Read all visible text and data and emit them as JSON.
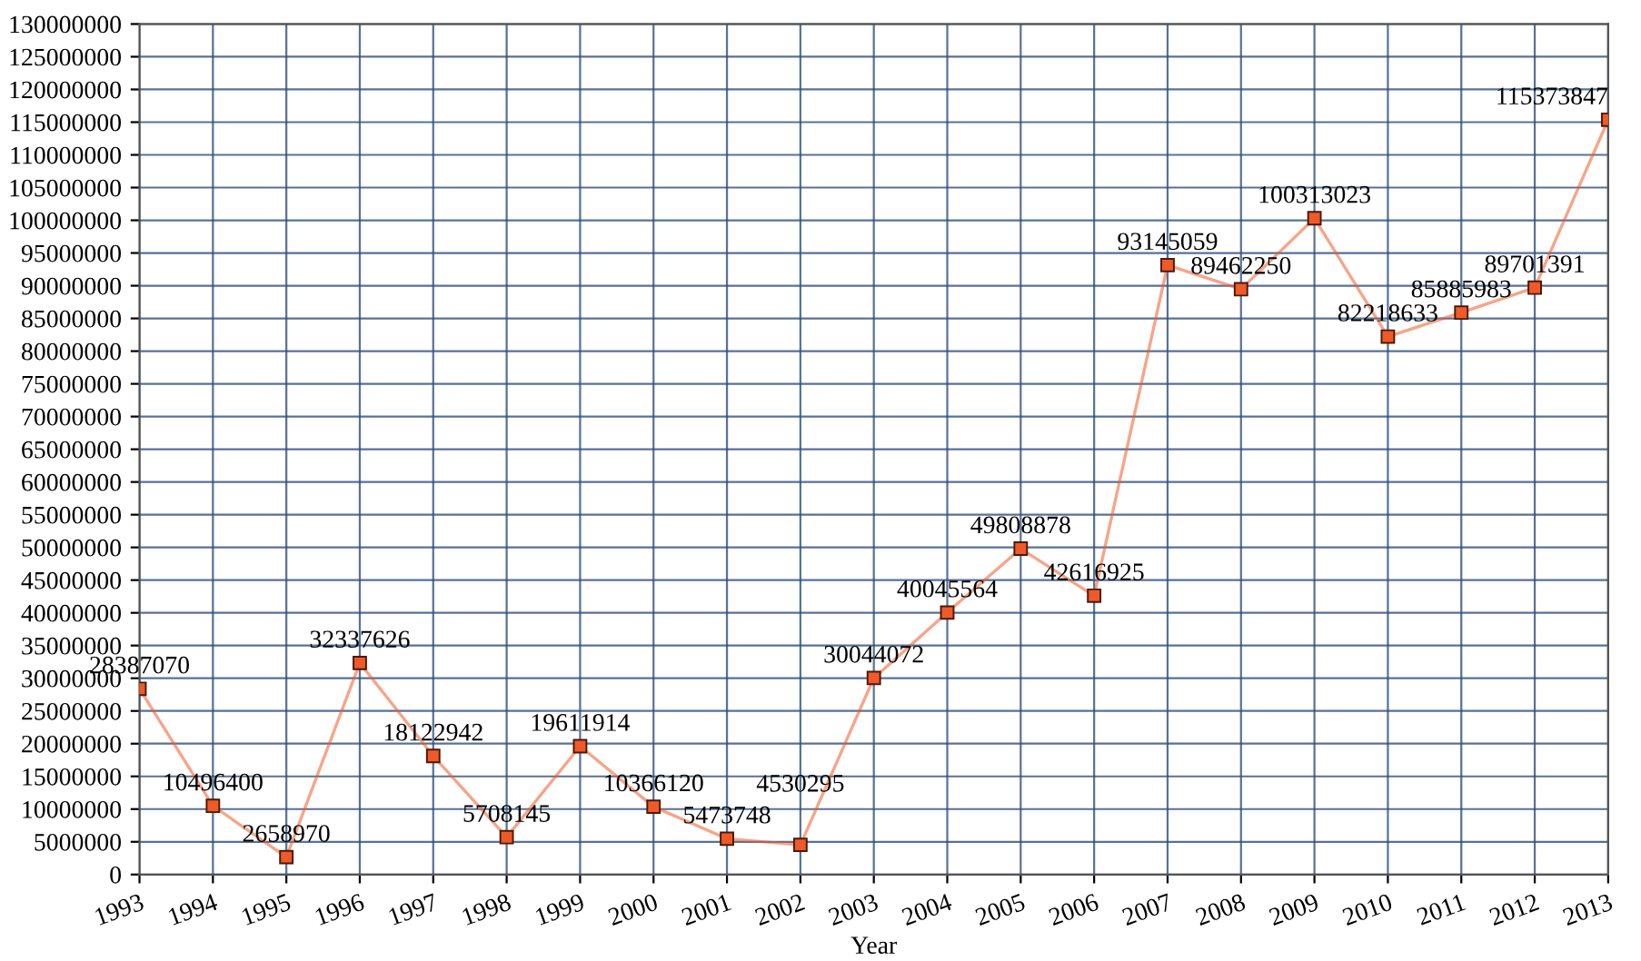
{
  "chart_data": {
    "type": "line",
    "xlabel": "Year",
    "categories": [
      "1993",
      "1994",
      "1995",
      "1996",
      "1997",
      "1998",
      "1999",
      "2000",
      "2001",
      "2002",
      "2003",
      "2004",
      "2005",
      "2006",
      "2007",
      "2008",
      "2009",
      "2010",
      "2011",
      "2012",
      "2013"
    ],
    "series": [
      {
        "color": "#f05a28",
        "values": [
          28387070,
          10496400,
          2658970,
          32337626,
          18122942,
          5708145,
          19611914,
          10366120,
          5473748,
          4530295,
          30044072,
          40045564,
          49808878,
          42616925,
          93145059,
          89462250,
          100313023,
          82218633,
          85885983,
          89701391,
          115373847
        ]
      }
    ],
    "ylim": [
      0,
      130000000
    ],
    "yticks": [
      0,
      5000000,
      10000000,
      15000000,
      20000000,
      25000000,
      30000000,
      35000000,
      40000000,
      45000000,
      50000000,
      55000000,
      60000000,
      65000000,
      70000000,
      75000000,
      80000000,
      85000000,
      90000000,
      95000000,
      100000000,
      105000000,
      110000000,
      115000000,
      120000000,
      125000000,
      130000000
    ],
    "grid": true,
    "marker": "square",
    "line_style": "solid",
    "data_labels": true
  }
}
